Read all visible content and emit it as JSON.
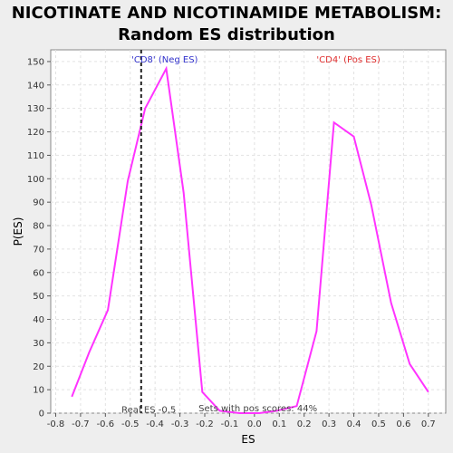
{
  "chart_data": {
    "type": "line",
    "title_line1": "NICOTINATE AND NICOTINAMIDE METABOLISM:",
    "title_line2": "Random ES distribution",
    "xlabel": "ES",
    "ylabel": "P(ES)",
    "xlim": [
      -0.82,
      0.77
    ],
    "ylim": [
      0,
      155
    ],
    "xticks": [
      -0.8,
      -0.7,
      -0.6,
      -0.5,
      -0.4,
      -0.3,
      -0.2,
      -0.1,
      0.0,
      0.1,
      0.2,
      0.3,
      0.4,
      0.5,
      0.6,
      0.7
    ],
    "xtick_labels": [
      "-0.8",
      "-0.7",
      "-0.6",
      "-0.5",
      "-0.4",
      "-0.3",
      "-0.2",
      "-0.1",
      "0.0",
      "0.1",
      "0.2",
      "0.3",
      "0.4",
      "0.5",
      "0.6",
      "0.7"
    ],
    "yticks": [
      0,
      10,
      20,
      30,
      40,
      50,
      60,
      70,
      80,
      90,
      100,
      110,
      120,
      130,
      140,
      150
    ],
    "grid": true,
    "series": [
      {
        "color": "#ff33ff",
        "x": [
          -0.735,
          -0.665,
          -0.59,
          -0.51,
          -0.44,
          -0.355,
          -0.285,
          -0.21,
          -0.14,
          -0.06,
          0.02,
          0.09,
          0.17,
          0.25,
          0.32,
          0.4,
          0.47,
          0.55,
          0.625,
          0.7
        ],
        "y": [
          7,
          26,
          44,
          99,
          130,
          147,
          94,
          9,
          1,
          0,
          0,
          1,
          3,
          35,
          124,
          118,
          89,
          47,
          21,
          9
        ]
      }
    ],
    "real_es": -0.456,
    "real_es_label": "Real ES -0.5",
    "neg_label": "'CD8' (Neg ES)",
    "pos_label": "'CD4' (Pos ES)",
    "pos_scores_label": "Sets with pos scores: 44%",
    "colors": {
      "line": "#ff33ff",
      "neg": "#3333cc",
      "pos": "#e03030",
      "bg": "#eeeeee",
      "plot_bg": "#ffffff"
    }
  }
}
